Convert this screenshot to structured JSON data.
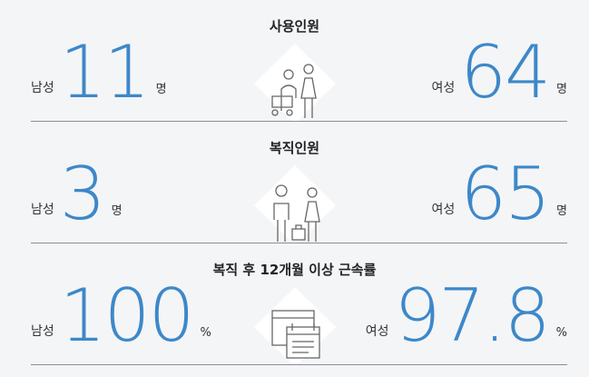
{
  "sections": [
    {
      "title": "사용인원",
      "left": {
        "label": "남성",
        "value": 11,
        "unit": "명"
      },
      "right": {
        "label": "여성",
        "value": 64,
        "unit": "명"
      }
    },
    {
      "title": "복직인원",
      "left": {
        "label": "남성",
        "value": 3,
        "unit": "명"
      },
      "right": {
        "label": "여성",
        "value": 65,
        "unit": "명"
      }
    },
    {
      "title": "복직 후 12개월 이상 근속률",
      "left": {
        "label": "남성",
        "value": 100,
        "unit": "%"
      },
      "right": {
        "label": "여성",
        "value": 97.8,
        "unit": "%"
      }
    }
  ]
}
